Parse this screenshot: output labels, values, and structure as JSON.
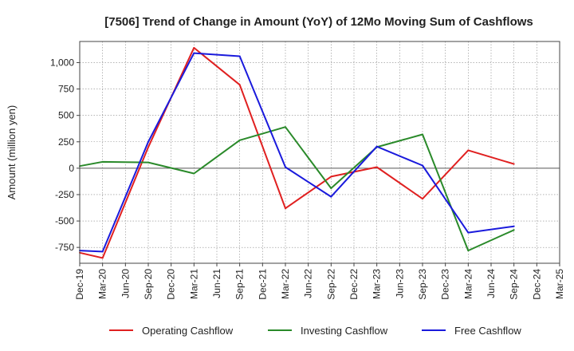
{
  "chart_data": {
    "type": "line",
    "title": "[7506]  Trend of Change in Amount (YoY) of 12Mo Moving Sum of Cashflows",
    "xlabel": "",
    "ylabel": "Amount (million yen)",
    "ylim": [
      -900,
      1200
    ],
    "yticks": [
      -750,
      -500,
      -250,
      0,
      250,
      500,
      750,
      1000
    ],
    "yticklabels": [
      "-750",
      "-500",
      "-250",
      "0",
      "250",
      "500",
      "750",
      "1,000"
    ],
    "grid": true,
    "legend_position": "bottom",
    "categories": [
      "Dec-19",
      "Mar-20",
      "Jun-20",
      "Sep-20",
      "Dec-20",
      "Mar-21",
      "Jun-21",
      "Sep-21",
      "Dec-21",
      "Mar-22",
      "Jun-22",
      "Sep-22",
      "Dec-22",
      "Mar-23",
      "Jun-23",
      "Sep-23",
      "Dec-23",
      "Mar-24",
      "Jun-24",
      "Sep-24",
      "Dec-24",
      "Mar-25"
    ],
    "series": [
      {
        "name": "Operating Cashflow",
        "color": "#e02020",
        "values": [
          -800,
          -850,
          null,
          200,
          null,
          1140,
          null,
          790,
          null,
          -380,
          null,
          -80,
          null,
          10,
          null,
          -290,
          null,
          170,
          null,
          40,
          null,
          null
        ]
      },
      {
        "name": "Investing Cashflow",
        "color": "#2a8a2a",
        "values": [
          20,
          60,
          null,
          55,
          null,
          -50,
          null,
          265,
          null,
          390,
          null,
          -190,
          null,
          200,
          null,
          320,
          null,
          -780,
          null,
          -585,
          null,
          null
        ]
      },
      {
        "name": "Free Cashflow",
        "color": "#1a1adc",
        "values": [
          -780,
          -790,
          null,
          250,
          null,
          1090,
          null,
          1060,
          null,
          10,
          null,
          -270,
          null,
          205,
          null,
          25,
          null,
          -610,
          null,
          -550,
          null,
          null
        ]
      }
    ]
  }
}
